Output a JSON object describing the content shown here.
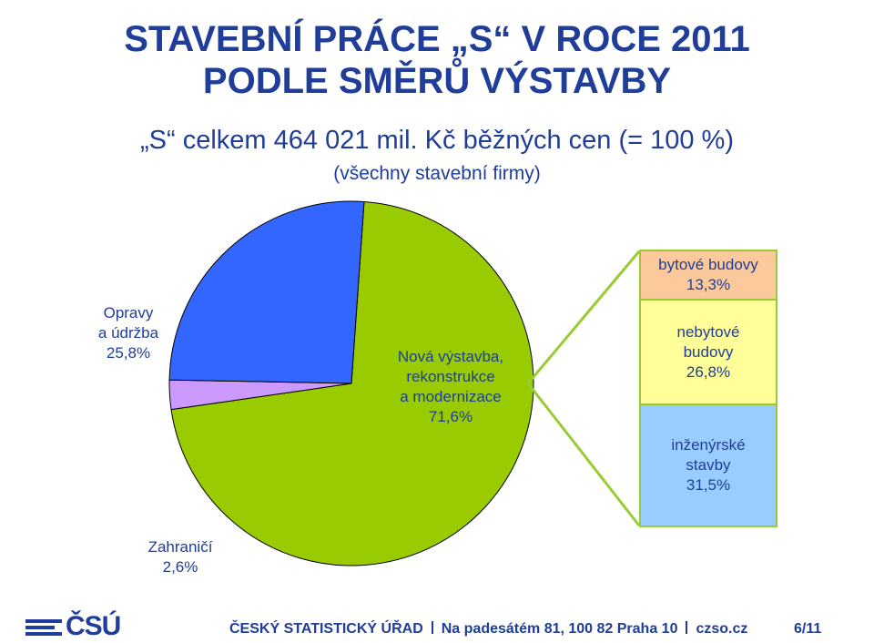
{
  "title_line1": "STAVEBNÍ PRÁCE „S“ V ROCE 2011",
  "title_line2": "PODLE SMĚRŮ VÝSTAVBY",
  "subtitle": "„S“ celkem 464 021 mil. Kč běžných cen (= 100 %)",
  "subnote": "(všechny stavební firmy)",
  "chart_data": {
    "type": "pie",
    "slices": [
      {
        "name_lines": [
          "Nová výstavba,",
          "rekonstrukce",
          "a modernizace"
        ],
        "value": 71.6,
        "value_label": "71,6%",
        "color": "#99cc00"
      },
      {
        "name_lines": [
          "Zahraničí"
        ],
        "value": 2.6,
        "value_label": "2,6%",
        "color": "#cc99ff"
      },
      {
        "name_lines": [
          "Opravy",
          "a údržba"
        ],
        "value": 25.8,
        "value_label": "25,8%",
        "color": "#3366ff"
      }
    ],
    "breakdown_of": "Nová výstavba, rekonstrukce a modernizace",
    "breakdown": [
      {
        "name_lines": [
          "bytové budovy"
        ],
        "value": 13.3,
        "value_label": "13,3%",
        "color": "#fcc99c"
      },
      {
        "name_lines": [
          "nebytové",
          "budovy"
        ],
        "value": 26.8,
        "value_label": "26,8%",
        "color": "#ffff99"
      },
      {
        "name_lines": [
          "inženýrské",
          "stavby"
        ],
        "value": 31.5,
        "value_label": "31,5%",
        "color": "#99ccff"
      }
    ],
    "connector_color": "#99cc33"
  },
  "footer": {
    "logo_text": "ČSÚ",
    "org": "ČESKÝ STATISTICKÝ ÚŘAD",
    "address": "Na padesátém 81, 100 82 Praha 10",
    "web": "czso.cz",
    "page": "6/11"
  }
}
